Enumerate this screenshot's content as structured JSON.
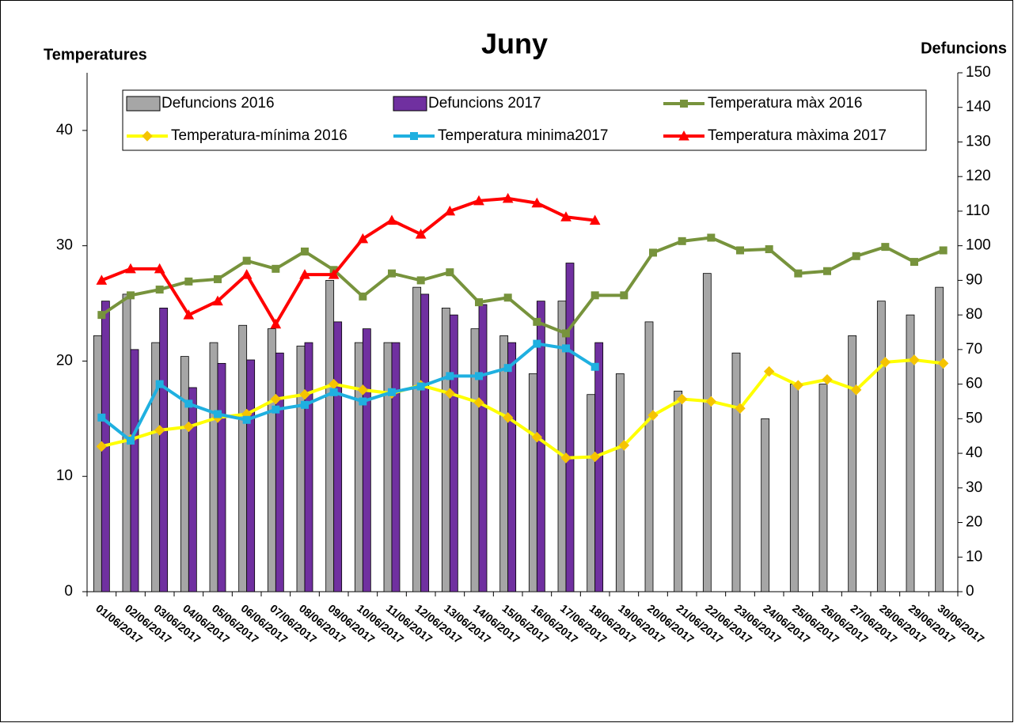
{
  "chart_data": {
    "type": "bar-line",
    "title": "Juny",
    "y_label": "Temperatures",
    "y2_label": "Defuncions",
    "categories": [
      "01/06/2017",
      "02/06/2017",
      "03/06/2017",
      "04/06/2017",
      "05/06/2017",
      "06/06/2017",
      "07/06/2017",
      "08/06/2017",
      "09/06/2017",
      "10/06/2017",
      "11/06/2017",
      "12/06/2017",
      "13/06/2017",
      "14/06/2017",
      "15/06/2017",
      "16/06/2017",
      "17/06/2017",
      "18/06/2017",
      "19/06/2017",
      "20/06/2017",
      "21/06/2017",
      "22/06/2017",
      "23/06/2017",
      "24/06/2017",
      "25/06/2017",
      "26/06/2017",
      "27/06/2017",
      "28/06/2017",
      "29/06/2017",
      "30/06/2017"
    ],
    "ylim": [
      0,
      45
    ],
    "yticks": [
      0,
      10,
      20,
      30,
      40
    ],
    "y2lim": [
      0,
      150
    ],
    "y2ticks": [
      0,
      10,
      20,
      30,
      40,
      50,
      60,
      70,
      80,
      90,
      100,
      110,
      120,
      130,
      140,
      150
    ],
    "series": [
      {
        "name": "Defuncions 2016",
        "type": "bar",
        "axis": "y2",
        "color": "#a6a6a6",
        "values": [
          74,
          86,
          72,
          68,
          72,
          77,
          76,
          71,
          90,
          72,
          72,
          88,
          82,
          76,
          74,
          63,
          84,
          57,
          63,
          78,
          58,
          92,
          69,
          50,
          60,
          60,
          74,
          84,
          80,
          88
        ]
      },
      {
        "name": "Defuncions 2017",
        "type": "bar",
        "axis": "y2",
        "color": "#7030a0",
        "values": [
          84,
          70,
          82,
          59,
          66,
          67,
          69,
          72,
          78,
          76,
          72,
          86,
          80,
          83,
          72,
          84,
          95,
          72,
          null,
          null,
          null,
          null,
          null,
          null,
          null,
          null,
          null,
          null,
          null,
          null
        ]
      },
      {
        "name": "Temperatura màx 2016",
        "type": "line",
        "marker": "square",
        "color": "#77933c",
        "values": [
          24.0,
          25.7,
          26.2,
          26.9,
          27.1,
          28.7,
          28.0,
          29.5,
          27.9,
          25.6,
          27.6,
          27.0,
          27.7,
          25.1,
          25.5,
          23.4,
          22.4,
          25.7,
          25.7,
          29.4,
          30.4,
          30.7,
          29.6,
          29.7,
          27.6,
          27.8,
          29.1,
          29.9,
          28.6,
          29.6
        ]
      },
      {
        "name": "Temperatura-mínima 2016",
        "type": "line",
        "marker": "diamond",
        "color": "#ffff00",
        "values": [
          12.6,
          13.2,
          14.0,
          14.3,
          15.1,
          15.4,
          16.7,
          17.1,
          18.0,
          17.5,
          17.2,
          17.9,
          17.2,
          16.4,
          15.1,
          13.4,
          11.6,
          11.7,
          12.7,
          15.3,
          16.7,
          16.5,
          15.9,
          19.1,
          17.9,
          18.4,
          17.5,
          19.9,
          20.1,
          19.8
        ]
      },
      {
        "name": "Temperatura minima2017",
        "type": "line",
        "marker": "square",
        "color": "#1fb0e0",
        "values": [
          15.1,
          13.1,
          18.0,
          16.3,
          15.4,
          14.9,
          15.8,
          16.2,
          17.3,
          16.5,
          17.3,
          17.8,
          18.7,
          18.7,
          19.4,
          21.5,
          21.1,
          19.5,
          null,
          null,
          null,
          null,
          null,
          null,
          null,
          null,
          null,
          null,
          null,
          null
        ]
      },
      {
        "name": "Temperatura màxima 2017",
        "type": "line",
        "marker": "triangle",
        "color": "#ff0000",
        "values": [
          27.0,
          28.0,
          28.0,
          24.0,
          25.2,
          27.5,
          23.2,
          27.5,
          27.5,
          30.6,
          32.2,
          31.0,
          33.0,
          33.9,
          34.1,
          33.7,
          32.5,
          32.2,
          null,
          null,
          null,
          null,
          null,
          null,
          null,
          null,
          null,
          null,
          null,
          null
        ]
      }
    ]
  }
}
